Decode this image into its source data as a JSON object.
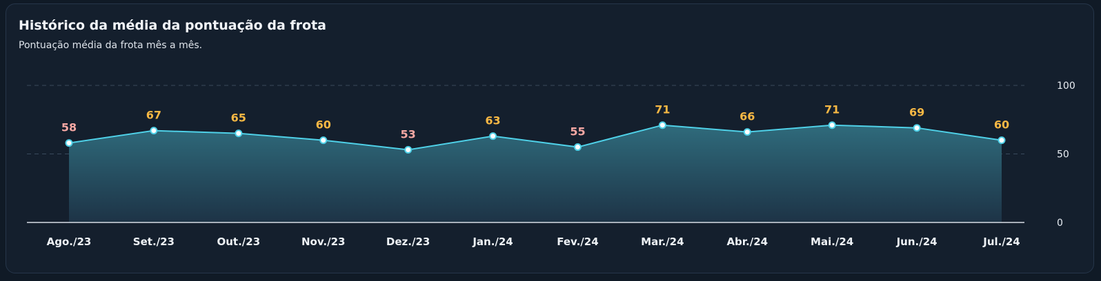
{
  "card": {
    "title": "Histórico da média da pontuação da frota",
    "subtitle": "Pontuação média da frota mês a mês."
  },
  "colors": {
    "background": "#141f2d",
    "line": "#4fd1e8",
    "area_top": "#2f6b7c",
    "area_bottom": "#1d3346",
    "label_high": "#f7b844",
    "label_low": "#f7a8a4"
  },
  "chart_data": {
    "type": "area",
    "categories": [
      "Ago./23",
      "Set./23",
      "Out./23",
      "Nov./23",
      "Dez./23",
      "Jan./24",
      "Fev./24",
      "Mar./24",
      "Abr./24",
      "Mai./24",
      "Jun./24",
      "Jul./24"
    ],
    "series": [
      {
        "values": [
          58,
          67,
          65,
          60,
          53,
          63,
          55,
          71,
          66,
          71,
          69,
          60
        ],
        "label_colors": [
          "#f7a8a4",
          "#f7b844",
          "#f7b844",
          "#f7b844",
          "#f7a8a4",
          "#f7b844",
          "#f7a8a4",
          "#f7b844",
          "#f7b844",
          "#f7b844",
          "#f7b844",
          "#f7b844"
        ]
      }
    ],
    "title": "Histórico da média da pontuação da frota",
    "subtitle": "Pontuação média da frota mês a mês.",
    "xlabel": "",
    "ylabel": "",
    "ylim": [
      0,
      100
    ],
    "yticks": [
      0,
      50,
      100
    ],
    "y_axis_position": "right",
    "grid": true,
    "legend": "none"
  }
}
